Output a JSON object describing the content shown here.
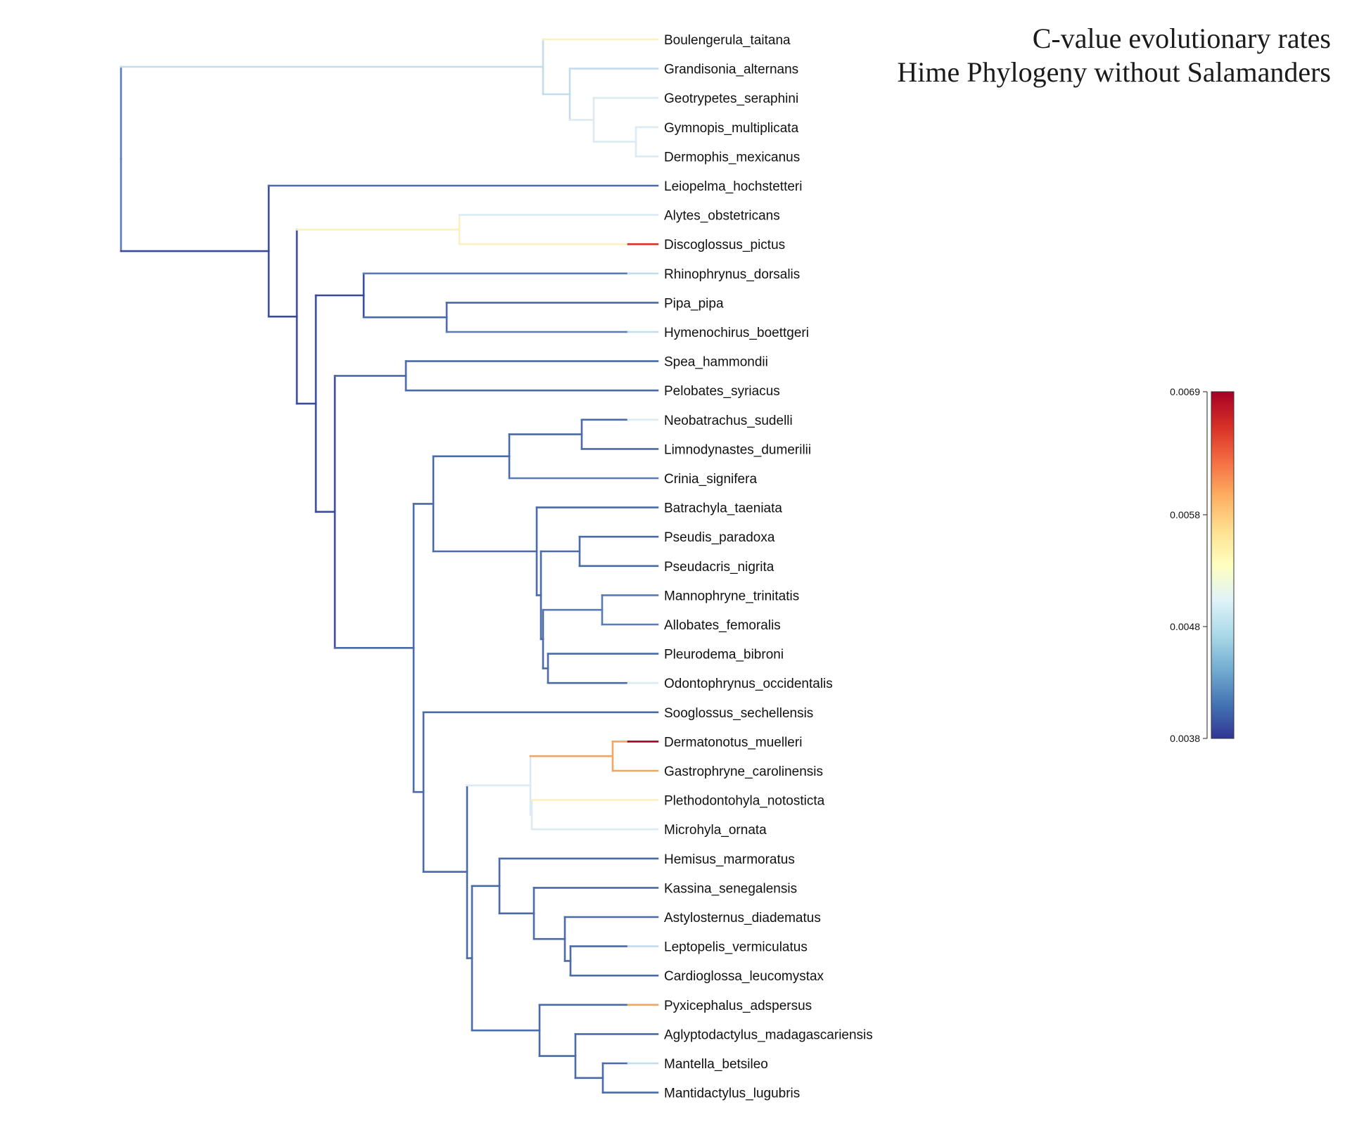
{
  "title": {
    "line1": "C-value evolutionary rates",
    "line2": "Hime Phylogeny without Salamanders"
  },
  "tips": [
    "Boulengerula_taitana",
    "Grandisonia_alternans",
    "Geotrypetes_seraphini",
    "Gymnopis_multiplicata",
    "Dermophis_mexicanus",
    "Leiopelma_hochstetteri",
    "Alytes_obstetricans",
    "Discoglossus_pictus",
    "Rhinophrynus_dorsalis",
    "Pipa_pipa",
    "Hymenochirus_boettgeri",
    "Spea_hammondii",
    "Pelobates_syriacus",
    "Neobatrachus_sudelli",
    "Limnodynastes_dumerilii",
    "Crinia_signifera",
    "Batrachyla_taeniata",
    "Pseudis_paradoxa",
    "Pseudacris_nigrita",
    "Mannophryne_trinitatis",
    "Allobates_femoralis",
    "Pleurodema_bibroni",
    "Odontophrynus_occidentalis",
    "Sooglossus_sechellensis",
    "Dermatonotus_muelleri",
    "Gastrophryne_carolinensis",
    "Plethodontohyla_notosticta",
    "Microhyla_ornata",
    "Hemisus_marmoratus",
    "Kassina_senegalensis",
    "Astylosternus_diadematus",
    "Leptopelis_vermiculatus",
    "Cardioglossa_leucomystax",
    "Pyxicephalus_adspersus",
    "Aglyptodactylus_madagascariensis",
    "Mantella_betsileo",
    "Mantidactylus_lugubris"
  ],
  "colorbar": {
    "ticks": [
      "0.0069",
      "0.0058",
      "0.0048",
      "0.0038"
    ],
    "min": 0.0038,
    "max": 0.0069,
    "stops": [
      "#313695",
      "#4575b4",
      "#74add1",
      "#abd9e9",
      "#e0f3f8",
      "#ffffbf",
      "#fee090",
      "#fdae61",
      "#f46d43",
      "#d73027",
      "#a50026"
    ]
  },
  "branch_colors": {
    "dark_blue": "#3a4a9a",
    "mid_blue": "#4a6aa8",
    "steel_blue": "#5a7ab4",
    "light_blue": "#c3dcea",
    "pale_blue": "#dcebf2",
    "pale_yellow": "#fbf0c0",
    "orange": "#f0a560",
    "red": "#d73027",
    "dark_red": "#a50026"
  }
}
